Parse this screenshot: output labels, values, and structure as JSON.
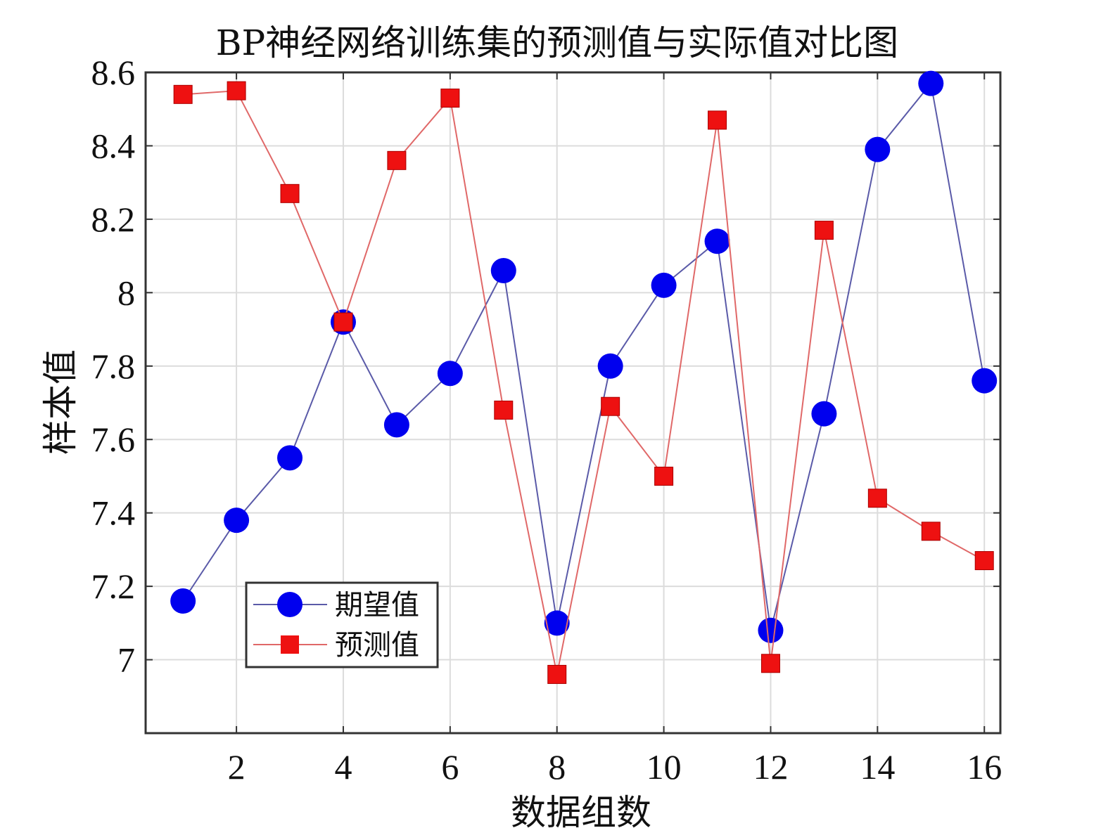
{
  "chart_data": {
    "type": "line",
    "title": "BP神经网络训练集的预测值与实际值对比图",
    "xlabel": "数据组数",
    "ylabel": "样本值",
    "xlim": [
      0.3,
      16.3
    ],
    "ylim": [
      6.8,
      8.6
    ],
    "xticks": [
      2,
      4,
      6,
      8,
      10,
      12,
      14,
      16
    ],
    "xtick_labels": [
      "2",
      "4",
      "6",
      "8",
      "10",
      "12",
      "14",
      "16"
    ],
    "yticks": [
      7,
      7.2,
      7.4,
      7.6,
      7.8,
      8,
      8.2,
      8.4,
      8.6
    ],
    "ytick_labels": [
      "7",
      "7.2",
      "7.4",
      "7.6",
      "7.8",
      "8",
      "8.2",
      "8.4",
      "8.6"
    ],
    "grid": true,
    "legend_position": "bottom-left",
    "x": [
      1,
      2,
      3,
      4,
      5,
      6,
      7,
      8,
      9,
      10,
      11,
      12,
      13,
      14,
      15,
      16
    ],
    "series": [
      {
        "name": "期望值",
        "marker": "circle",
        "color": "#0000ee",
        "line_color": "#5a5aa8",
        "values": [
          7.16,
          7.38,
          7.55,
          7.92,
          7.64,
          7.78,
          8.06,
          7.1,
          7.8,
          8.02,
          8.14,
          7.08,
          7.67,
          8.39,
          8.57,
          7.76
        ]
      },
      {
        "name": "预测值",
        "marker": "square",
        "color": "#ee1111",
        "line_color": "#e06868",
        "values": [
          8.54,
          8.55,
          8.27,
          7.92,
          8.36,
          8.53,
          7.68,
          6.96,
          7.69,
          7.5,
          8.47,
          6.99,
          8.17,
          7.44,
          7.35,
          7.27
        ]
      }
    ]
  }
}
